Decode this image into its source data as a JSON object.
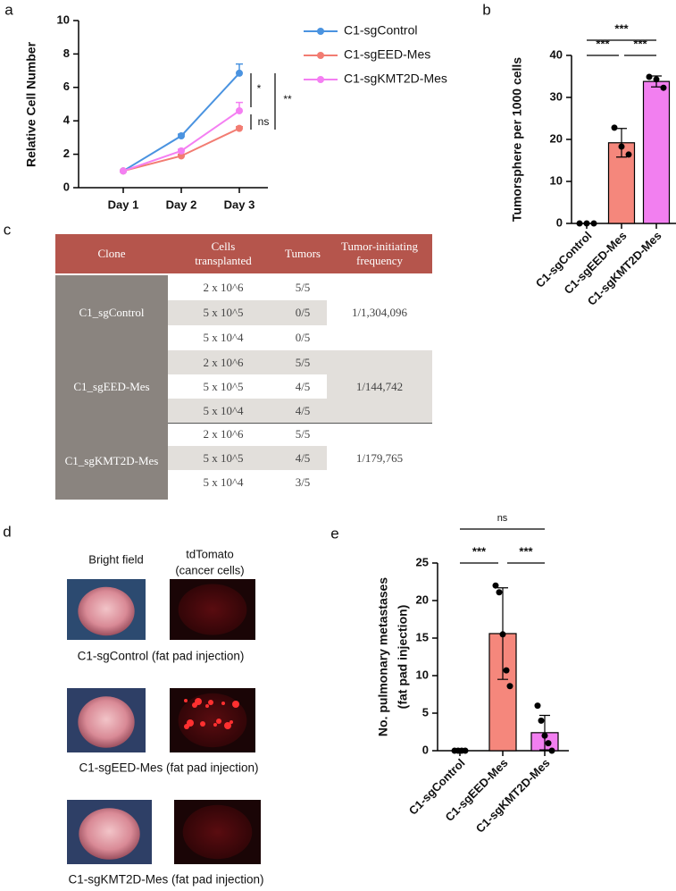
{
  "panel_labels": [
    "a",
    "b",
    "c",
    "d",
    "e"
  ],
  "chart_data": [
    {
      "type": "line",
      "y_label": "Relative Cell Number",
      "categories": [
        "Day 1",
        "Day 2",
        "Day 3"
      ],
      "ylim": [
        0,
        10
      ],
      "yticks": [
        0,
        2,
        4,
        6,
        8,
        10
      ],
      "series": [
        {
          "name": "C1-sgControl",
          "color": "#4a93e0",
          "values": [
            1,
            3.1,
            6.85
          ],
          "errors": [
            0,
            0.1,
            0.55
          ]
        },
        {
          "name": "C1-sgEED-Mes",
          "color": "#f27c72",
          "values": [
            1,
            1.9,
            3.55
          ],
          "errors": [
            0,
            0.1,
            0.1
          ]
        },
        {
          "name": "C1-sgKMT2D-Mes",
          "color": "#f47ff2",
          "values": [
            1,
            2.2,
            4.6
          ],
          "errors": [
            0,
            0.1,
            0.5
          ]
        }
      ],
      "annotations": [
        "*",
        "ns",
        "**"
      ]
    },
    {
      "type": "bar",
      "y_label": "Tumorsphere per 1000 cells",
      "categories": [
        "C1-sgControl",
        "C1-sgEED-Mes",
        "C1-sgKMT2D-Mes"
      ],
      "values": [
        0,
        19.2,
        33.8
      ],
      "errors": [
        0,
        3.4,
        1.3
      ],
      "points": [
        [
          0,
          0,
          0
        ],
        [
          22.8,
          18.3,
          16.4
        ],
        [
          34.9,
          34.3,
          32.3
        ]
      ],
      "colors": [
        "#ffffff",
        "#f5877c",
        "#f27ff0"
      ],
      "ylim": [
        0,
        40
      ],
      "yticks": [
        0,
        10,
        20,
        30,
        40
      ],
      "annotations": [
        "***",
        "***",
        "***"
      ]
    },
    {
      "type": "bar",
      "y_label": [
        "No. pulmonary metastases",
        "(fat pad injection)"
      ],
      "categories": [
        "C1-sgControl",
        "C1-sgEED-Mes",
        "C1-sgKMT2D-Mes"
      ],
      "values": [
        0,
        15.6,
        2.4
      ],
      "errors": [
        0,
        6.1,
        2.3
      ],
      "points": [
        [
          0,
          0,
          0,
          0
        ],
        [
          22,
          21.1,
          15.5,
          10.7,
          8.6
        ],
        [
          6,
          4,
          2,
          1,
          0
        ]
      ],
      "colors": [
        "#ffffff",
        "#f5877c",
        "#f27ff0"
      ],
      "ylim": [
        0,
        25
      ],
      "yticks": [
        0,
        5,
        10,
        15,
        20,
        25
      ],
      "annotations": [
        "ns",
        "***",
        "***"
      ]
    }
  ],
  "table": {
    "header": [
      "Clone",
      "Cells transplanted",
      "Tumors",
      "Tumor-initiating frequency"
    ],
    "groups": [
      {
        "clone": "C1_sgControl",
        "rows": [
          [
            "2 x 10^6",
            "5/5"
          ],
          [
            "5 x 10^5",
            "0/5"
          ],
          [
            "5 x 10^4",
            "0/5"
          ]
        ],
        "frequency": "1/1,304,096"
      },
      {
        "clone": "C1_sgEED-Mes",
        "rows": [
          [
            "2 x 10^6",
            "5/5"
          ],
          [
            "5 x 10^5",
            "4/5"
          ],
          [
            "5 x 10^4",
            "4/5"
          ]
        ],
        "frequency": "1/144,742"
      },
      {
        "clone": "C1_sgKMT2D-Mes",
        "rows": [
          [
            "2 x 10^6",
            "5/5"
          ],
          [
            "5 x 10^5",
            "4/5"
          ],
          [
            "5 x 10^4",
            "3/5"
          ]
        ],
        "frequency": "1/179,765"
      }
    ]
  },
  "images": {
    "column_titles": [
      "Bright field",
      [
        "tdTomato",
        "(cancer cells)"
      ]
    ],
    "captions": [
      "C1-sgControl (fat pad injection)",
      "C1-sgEED-Mes (fat pad injection)",
      "C1-sgKMT2D-Mes (fat pad injection)"
    ]
  }
}
